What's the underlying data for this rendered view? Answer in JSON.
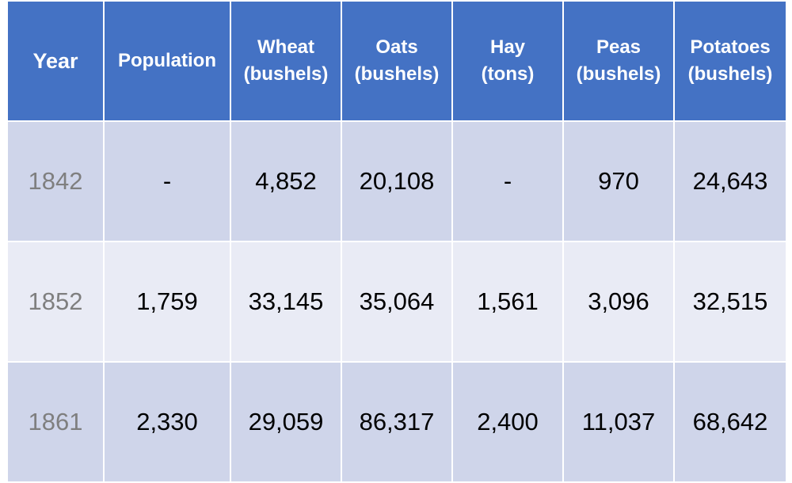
{
  "table": {
    "headers": [
      {
        "key": "year",
        "lines": [
          "Year"
        ]
      },
      {
        "key": "population",
        "lines": [
          "Population"
        ]
      },
      {
        "key": "wheat",
        "lines": [
          "Wheat",
          "(bushels)"
        ]
      },
      {
        "key": "oats",
        "lines": [
          "Oats",
          "(bushels)"
        ]
      },
      {
        "key": "hay",
        "lines": [
          "Hay",
          "(tons)"
        ]
      },
      {
        "key": "peas",
        "lines": [
          "Peas",
          "(bushels)"
        ]
      },
      {
        "key": "potatoes",
        "lines": [
          "Potatoes",
          "(bushels)"
        ]
      }
    ],
    "rows": [
      {
        "year": "1842",
        "population": "-",
        "wheat": "4,852",
        "oats": "20,108",
        "hay": "-",
        "peas": "970",
        "potatoes": "24,643"
      },
      {
        "year": "1852",
        "population": "1,759",
        "wheat": "33,145",
        "oats": "35,064",
        "hay": "1,561",
        "peas": "3,096",
        "potatoes": "32,515"
      },
      {
        "year": "1861",
        "population": "2,330",
        "wheat": "29,059",
        "oats": "86,317",
        "hay": "2,400",
        "peas": "11,037",
        "potatoes": "68,642"
      }
    ]
  },
  "colors": {
    "header_bg": "#4472c4",
    "header_text": "#ffffff",
    "row_dark": "#cfd5ea",
    "row_light": "#e9ebf5",
    "year_text": "#7f7f7f"
  }
}
